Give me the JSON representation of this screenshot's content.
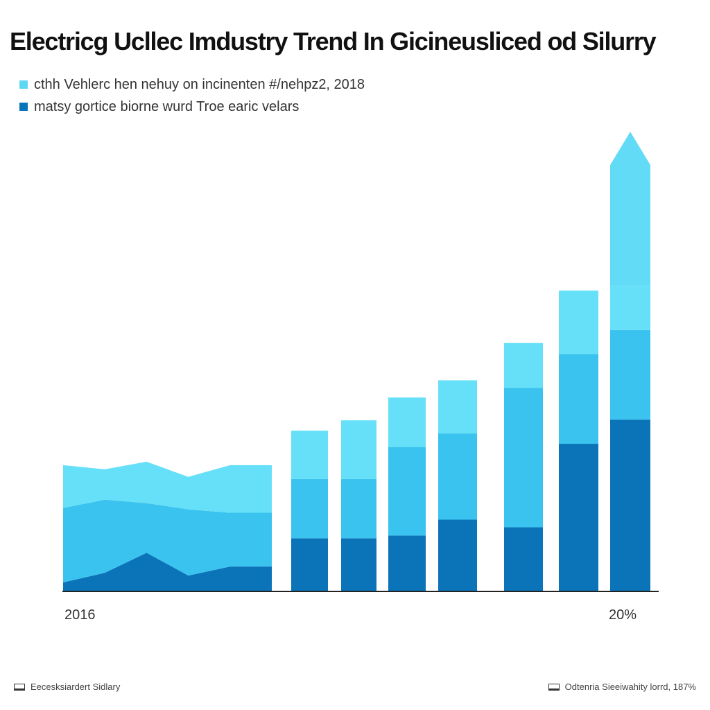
{
  "chart_data": {
    "type": "bar",
    "stacked": true,
    "title": "Electricg Ucllec Imdustry Trend In Gicineusliced od Silurry",
    "xlabel": "",
    "ylabel": "",
    "ylim": [
      0,
      620
    ],
    "x_tick_labels": [
      "2016",
      "20%"
    ],
    "legend": {
      "placement": "top-left",
      "entries": [
        {
          "label": "cthh Vehlerc hen nehuy on incinenten #/nehpz2, 2018",
          "color": "#5ed8f2"
        },
        {
          "label": "matsy gortice biorne wurd Troe earic velars",
          "color": "#0b73b8"
        }
      ]
    },
    "area_segment": {
      "x": [
        0,
        1,
        2,
        3,
        4,
        5
      ],
      "series": [
        {
          "name": "",
          "color": "#0b73b8",
          "values": [
            12,
            26,
            55,
            22,
            35,
            35
          ]
        },
        {
          "name": "",
          "color": "#3ac3ee",
          "values": [
            108,
            106,
            72,
            96,
            78,
            78
          ]
        },
        {
          "name": "",
          "color": "#66e0f8",
          "values": [
            62,
            44,
            60,
            47,
            69,
            69
          ]
        }
      ]
    },
    "bars": {
      "categories": [
        "b1",
        "b2",
        "b3",
        "b4",
        "b5",
        "b6",
        "b7",
        "b8"
      ],
      "series": [
        {
          "name": "",
          "color": "#0b73b8",
          "values": [
            76,
            76,
            80,
            103,
            92,
            213,
            248,
            248
          ]
        },
        {
          "name": "",
          "color": "#3ac3ee",
          "values": [
            86,
            86,
            128,
            125,
            202,
            130,
            130,
            130
          ]
        },
        {
          "name": "",
          "color": "#66e0f8",
          "values": [
            70,
            85,
            72,
            77,
            65,
            92,
            64,
            64
          ]
        },
        {
          "name": "",
          "color": "#62dbf7",
          "values": [
            0,
            0,
            0,
            0,
            0,
            0,
            0,
            175
          ]
        }
      ],
      "final_bar_arrow": true
    }
  },
  "footer": {
    "left_text": "Eecesksiardert Sidlary",
    "right_text": "Odtenria Sieeiwahity lorrd, 187%"
  }
}
